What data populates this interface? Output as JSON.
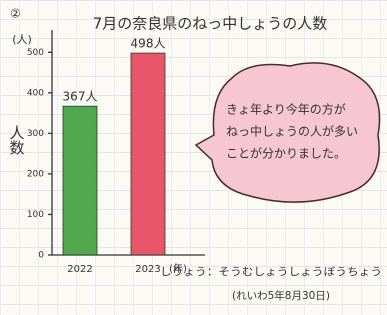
{
  "chart_data": {
    "type": "bar",
    "label": "②",
    "title": "7月の奈良県のねっ中しょうの人数",
    "y_unit": "(人)",
    "y_label": "人数",
    "x_unit": "(年)",
    "categories": [
      "2022",
      "2023"
    ],
    "values": [
      367,
      498
    ],
    "value_labels": [
      "367人",
      "498人"
    ],
    "colors": [
      "#3f9e3a",
      "#e8445a"
    ],
    "ylim": [
      0,
      550
    ],
    "yticks": [
      0,
      100,
      200,
      300,
      400,
      500
    ],
    "annotation": [
      "きょ年より今年の方が",
      "ねっ中しょうの人が多い",
      "ことが分かりました。"
    ],
    "source": "しりょう：そうむしょうしょうぼうちょう",
    "date": "(れいわ5年8月30日)"
  }
}
